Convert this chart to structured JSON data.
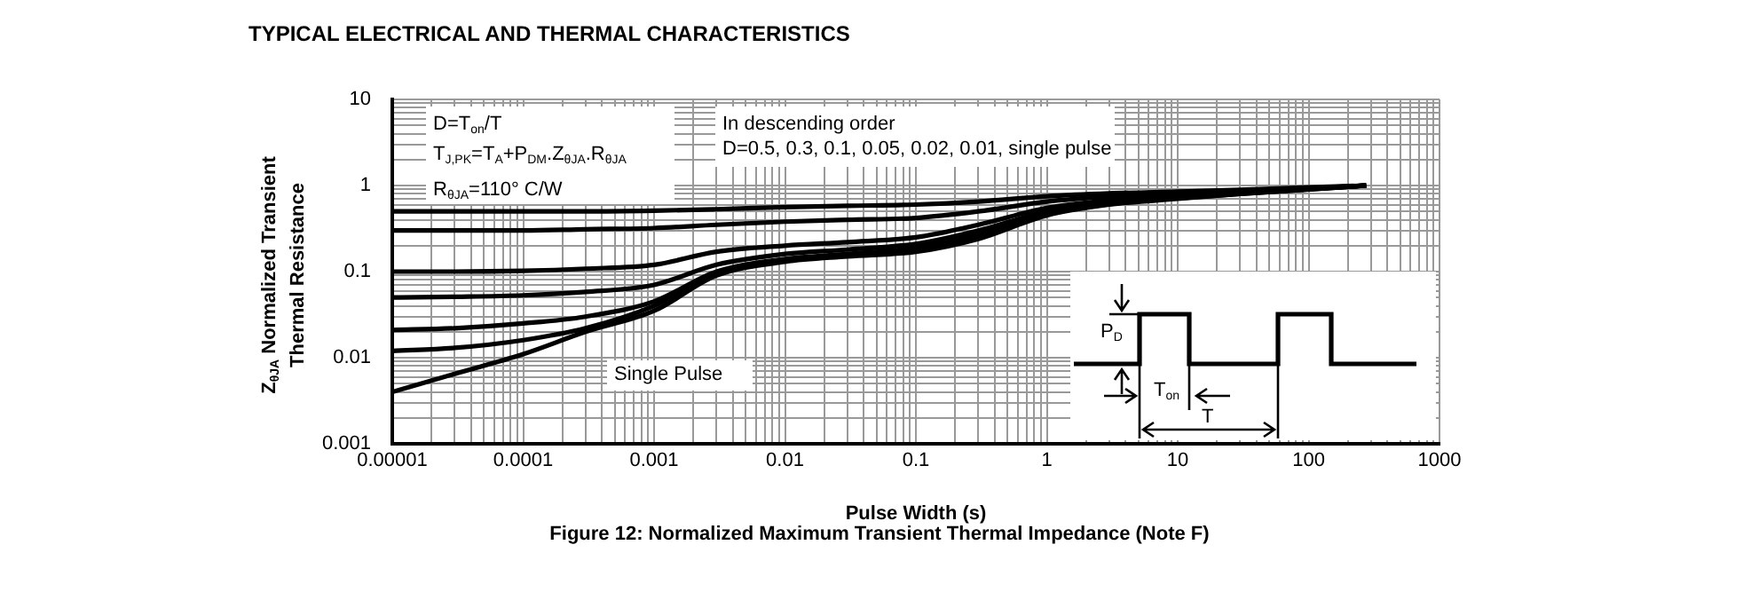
{
  "chart_data": {
    "type": "line",
    "title": "TYPICAL ELECTRICAL AND THERMAL CHARACTERISTICS",
    "xlabel": "Pulse Width (s)",
    "ylabel": "Z$_{θJA}$ Normalized Transient Thermal Resistance",
    "log": "xy",
    "grid": true,
    "xlim": [
      1e-05,
      1000
    ],
    "ylim": [
      0.001,
      10
    ],
    "xticks": [
      {
        "value": 1e-05,
        "label": "0.00001"
      },
      {
        "value": 2e-05,
        "label": null
      },
      {
        "value": 3e-05,
        "label": null
      },
      {
        "value": 4e-05,
        "label": null
      },
      {
        "value": 5e-05,
        "label": null
      },
      {
        "value": 6e-05,
        "label": null
      },
      {
        "value": 7e-05,
        "label": null
      },
      {
        "value": 8e-05,
        "label": null
      },
      {
        "value": 9e-05,
        "label": null
      },
      0.0001,
      {
        "value": 0.0002,
        "label": null
      },
      {
        "value": 0.0003,
        "label": null
      },
      {
        "value": 0.0004,
        "label": null
      },
      {
        "value": 0.0005,
        "label": null
      },
      {
        "value": 0.0006,
        "label": null
      },
      {
        "value": 0.0007,
        "label": null
      },
      {
        "value": 0.0008,
        "label": null
      },
      {
        "value": 0.0009,
        "label": null
      },
      0.001,
      {
        "value": 0.002,
        "label": null
      },
      {
        "value": 0.003,
        "label": null
      },
      {
        "value": 0.004,
        "label": null
      },
      {
        "value": 0.005,
        "label": null
      },
      {
        "value": 0.006,
        "label": null
      },
      {
        "value": 0.007,
        "label": null
      },
      {
        "value": 0.008,
        "label": null
      },
      {
        "value": 0.009,
        "label": null
      },
      0.01,
      {
        "value": 0.02,
        "label": null
      },
      {
        "value": 0.03,
        "label": null
      },
      {
        "value": 0.04,
        "label": null
      },
      {
        "value": 0.05,
        "label": null
      },
      {
        "value": 0.06,
        "label": null
      },
      {
        "value": 0.07,
        "label": null
      },
      {
        "value": 0.08,
        "label": null
      },
      {
        "value": 0.09,
        "label": null
      },
      0.1,
      {
        "value": 0.2,
        "label": null
      },
      {
        "value": 0.3,
        "label": null
      },
      {
        "value": 0.4,
        "label": null
      },
      {
        "value": 0.5,
        "label": null
      },
      {
        "value": 0.6,
        "label": null
      },
      {
        "value": 0.7,
        "label": null
      },
      {
        "value": 0.8,
        "label": null
      },
      {
        "value": 0.9,
        "label": null
      },
      1,
      {
        "value": 2,
        "label": null
      },
      {
        "value": 3,
        "label": null
      },
      {
        "value": 4,
        "label": null
      },
      {
        "value": 5,
        "label": null
      },
      {
        "value": 6,
        "label": null
      },
      {
        "value": 7,
        "label": null
      },
      {
        "value": 8,
        "label": null
      },
      {
        "value": 9,
        "label": null
      },
      10,
      {
        "value": 20,
        "label": null
      },
      {
        "value": 30,
        "label": null
      },
      {
        "value": 40,
        "label": null
      },
      {
        "value": 50,
        "label": null
      },
      {
        "value": 60,
        "label": null
      },
      {
        "value": 70,
        "label": null
      },
      {
        "value": 80,
        "label": null
      },
      {
        "value": 90,
        "label": null
      },
      100,
      {
        "value": 200,
        "label": null
      },
      {
        "value": 300,
        "label": null
      },
      {
        "value": 400,
        "label": null
      },
      {
        "value": 500,
        "label": null
      },
      {
        "value": 600,
        "label": null
      },
      {
        "value": 700,
        "label": null
      },
      {
        "value": 800,
        "label": null
      },
      {
        "value": 900,
        "label": null
      },
      1000
    ],
    "yticks": [
      0.001,
      {
        "value": 0.002,
        "label": null
      },
      {
        "value": 0.003,
        "label": null
      },
      {
        "value": 0.004,
        "label": null
      },
      {
        "value": 0.005,
        "label": null
      },
      {
        "value": 0.006,
        "label": null
      },
      {
        "value": 0.007,
        "label": null
      },
      {
        "value": 0.008,
        "label": null
      },
      {
        "value": 0.009,
        "label": null
      },
      0.01,
      {
        "value": 0.02,
        "label": null
      },
      {
        "value": 0.03,
        "label": null
      },
      {
        "value": 0.04,
        "label": null
      },
      {
        "value": 0.05,
        "label": null
      },
      {
        "value": 0.06,
        "label": null
      },
      {
        "value": 0.07,
        "label": null
      },
      {
        "value": 0.08,
        "label": null
      },
      {
        "value": 0.09,
        "label": null
      },
      0.1,
      {
        "value": 0.2,
        "label": null
      },
      {
        "value": 0.3,
        "label": null
      },
      {
        "value": 0.4,
        "label": null
      },
      {
        "value": 0.5,
        "label": null
      },
      {
        "value": 0.6,
        "label": null
      },
      {
        "value": 0.7,
        "label": null
      },
      {
        "value": 0.8,
        "label": null
      },
      {
        "value": 0.9,
        "label": null
      },
      1,
      {
        "value": 2,
        "label": null
      },
      {
        "value": 3,
        "label": null
      },
      {
        "value": 4,
        "label": null
      },
      {
        "value": 5,
        "label": null
      },
      {
        "value": 6,
        "label": null
      },
      {
        "value": 7,
        "label": null
      },
      {
        "value": 8,
        "label": null
      },
      {
        "value": 9,
        "label": null
      },
      10
    ],
    "x": [
      1e-05,
      3e-05,
      0.0001,
      0.0003,
      0.001,
      0.003,
      0.01,
      0.03,
      0.1,
      0.3,
      1,
      3,
      10,
      30,
      100,
      275
    ],
    "series": [
      {
        "color": "#000000",
        "values": [
          0.5,
          0.5,
          0.5,
          0.5,
          0.51,
          0.53,
          0.56,
          0.58,
          0.6,
          0.65,
          0.75,
          0.81,
          0.85,
          0.89,
          0.95,
          1.0
        ]
      },
      {
        "color": "#000000",
        "values": [
          0.3,
          0.3,
          0.3,
          0.31,
          0.32,
          0.35,
          0.38,
          0.4,
          0.42,
          0.5,
          0.65,
          0.74,
          0.8,
          0.86,
          0.93,
          1.0
        ]
      },
      {
        "color": "#000000",
        "values": [
          0.1,
          0.1,
          0.102,
          0.108,
          0.12,
          0.17,
          0.2,
          0.22,
          0.25,
          0.35,
          0.55,
          0.67,
          0.75,
          0.83,
          0.92,
          1.0
        ]
      },
      {
        "color": "#000000",
        "values": [
          0.05,
          0.051,
          0.053,
          0.058,
          0.07,
          0.12,
          0.16,
          0.18,
          0.21,
          0.3,
          0.5,
          0.64,
          0.73,
          0.82,
          0.91,
          1.0
        ]
      },
      {
        "color": "#000000",
        "values": [
          0.021,
          0.022,
          0.025,
          0.03,
          0.045,
          0.1,
          0.14,
          0.16,
          0.19,
          0.27,
          0.48,
          0.62,
          0.72,
          0.81,
          0.91,
          1.0
        ]
      },
      {
        "color": "#000000",
        "values": [
          0.012,
          0.013,
          0.016,
          0.022,
          0.04,
          0.095,
          0.135,
          0.155,
          0.18,
          0.25,
          0.46,
          0.61,
          0.71,
          0.8,
          0.9,
          1.0
        ]
      },
      {
        "color": "#000000",
        "values": [
          0.004,
          0.0065,
          0.011,
          0.02,
          0.035,
          0.09,
          0.13,
          0.15,
          0.17,
          0.24,
          0.45,
          0.6,
          0.7,
          0.8,
          0.9,
          1.0
        ]
      }
    ],
    "annotations": [
      "D=T$_{on}$/T",
      "T$_{J,PK}$=T$_{A}$+P$_{DM}$.Z$_{θJA}$.R$_{θJA}$",
      "R$_{θJA}$=110° C/W",
      "In descending order",
      "D=0.5, 0.3, 0.1, 0.05, 0.02, 0.01, single pulse",
      "Single Pulse",
      "Figure 12: Normalized Maximum Transient Thermal Impedance (Note F)",
      "P$_{D}$",
      "T$_{on}$",
      "T"
    ]
  }
}
